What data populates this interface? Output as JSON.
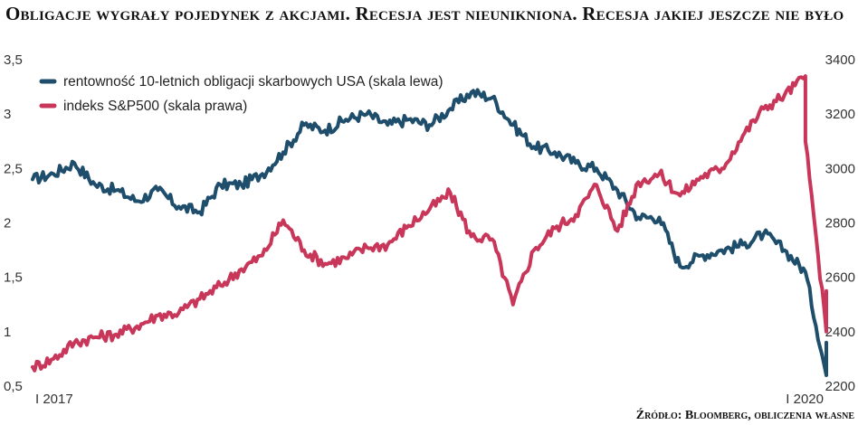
{
  "chart_data": {
    "type": "line",
    "title": "Obligacje wygrały pojedynek z akcjami. Recesja jest nieunikniona. Recesja jakiej jeszcze nie było",
    "source": "Źródło: Bloomberg, obliczenia własne",
    "x_labels": [
      "I 2017",
      "I 2020"
    ],
    "x_domain": [
      "2017-01",
      "2020-03"
    ],
    "y_left": {
      "min": 0.5,
      "max": 3.5,
      "ticks": [
        "0,5",
        "1",
        "1,5",
        "2",
        "2,5",
        "3",
        "3,5"
      ]
    },
    "y_right": {
      "min": 2200,
      "max": 3400,
      "ticks": [
        "2200",
        "2400",
        "2600",
        "2800",
        "3000",
        "3200",
        "3400"
      ]
    },
    "legend_position": "top-left",
    "grid": false,
    "series": [
      {
        "name": "rentowność 10-letnich obligacji skarbowych USA (skala lewa)",
        "axis": "left",
        "color": "#1e4e6b",
        "x": [
          "2017-01",
          "2017-02",
          "2017-03",
          "2017-04",
          "2017-05",
          "2017-06",
          "2017-07",
          "2017-08",
          "2017-09",
          "2017-10",
          "2017-11",
          "2017-12",
          "2018-01",
          "2018-02",
          "2018-03",
          "2018-04",
          "2018-05",
          "2018-06",
          "2018-07",
          "2018-08",
          "2018-09",
          "2018-10",
          "2018-11",
          "2018-12",
          "2019-01",
          "2019-02",
          "2019-03",
          "2019-04",
          "2019-05",
          "2019-06",
          "2019-07",
          "2019-08",
          "2019-09",
          "2019-10",
          "2019-11",
          "2019-12",
          "2020-01",
          "2020-02",
          "2020-03",
          "2020-03"
        ],
        "values": [
          2.4,
          2.45,
          2.55,
          2.35,
          2.3,
          2.2,
          2.3,
          2.15,
          2.1,
          2.35,
          2.35,
          2.45,
          2.65,
          2.9,
          2.85,
          2.95,
          3.0,
          2.9,
          2.95,
          2.9,
          3.05,
          3.2,
          3.15,
          2.9,
          2.7,
          2.65,
          2.55,
          2.5,
          2.3,
          2.05,
          2.05,
          1.6,
          1.7,
          1.75,
          1.8,
          1.9,
          1.75,
          1.55,
          0.6,
          0.9
        ]
      },
      {
        "name": "indeks S&P500 (skala prawa)",
        "axis": "right",
        "color": "#c8365a",
        "x": [
          "2017-01",
          "2017-02",
          "2017-03",
          "2017-04",
          "2017-05",
          "2017-06",
          "2017-07",
          "2017-08",
          "2017-09",
          "2017-10",
          "2017-11",
          "2017-12",
          "2018-01",
          "2018-02",
          "2018-03",
          "2018-04",
          "2018-05",
          "2018-06",
          "2018-07",
          "2018-08",
          "2018-09",
          "2018-10",
          "2018-11",
          "2018-12",
          "2019-01",
          "2019-02",
          "2019-03",
          "2019-04",
          "2019-05",
          "2019-06",
          "2019-07",
          "2019-08",
          "2019-09",
          "2019-10",
          "2019-11",
          "2019-12",
          "2020-01",
          "2020-02",
          "2020-02",
          "2020-03",
          "2020-03"
        ],
        "values": [
          2270,
          2300,
          2360,
          2380,
          2390,
          2420,
          2460,
          2470,
          2520,
          2570,
          2630,
          2680,
          2810,
          2700,
          2650,
          2670,
          2710,
          2720,
          2790,
          2850,
          2910,
          2750,
          2740,
          2500,
          2700,
          2780,
          2830,
          2940,
          2770,
          2950,
          2980,
          2900,
          2970,
          3000,
          3120,
          3220,
          3270,
          3340,
          3100,
          2400,
          2550
        ]
      }
    ]
  }
}
